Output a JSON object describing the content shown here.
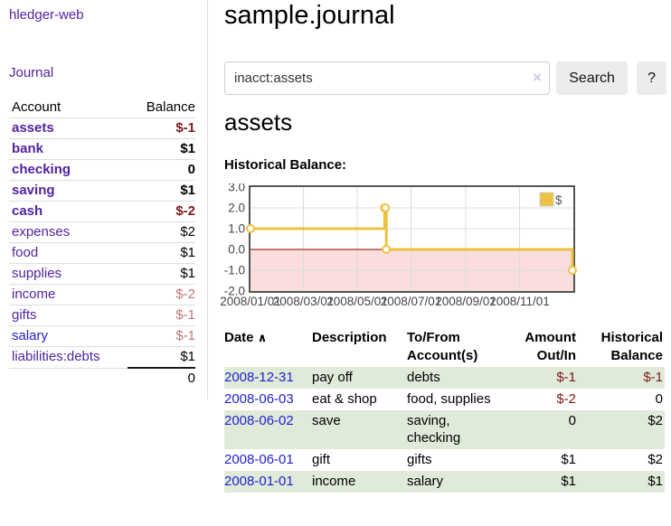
{
  "brand": "hledger-web",
  "nav": {
    "journal": "Journal"
  },
  "colors": {
    "link_purple": "#51239f",
    "link_blue": "#2222cc",
    "negative_strong": "#7f1818",
    "negative_soft": "#bd7575",
    "row_stripe_green": "#dfead9",
    "divider_gray": "#dddddd"
  },
  "icons": {
    "clear": "×",
    "sort_asc": "∧",
    "help": "?"
  },
  "sidebar_table": {
    "headers": [
      "Account",
      "Balance"
    ],
    "rows": [
      {
        "account": "assets",
        "indent": 1,
        "bold": true,
        "balance": "$-1",
        "balance_class": "neg-strong"
      },
      {
        "account": "bank",
        "indent": 2,
        "bold": true,
        "balance": "$1",
        "balance_class": "pos"
      },
      {
        "account": "checking",
        "indent": 3,
        "bold": true,
        "balance": "0",
        "balance_class": "pos"
      },
      {
        "account": "saving",
        "indent": 3,
        "bold": true,
        "balance": "$1",
        "balance_class": "pos"
      },
      {
        "account": "cash",
        "indent": 2,
        "bold": true,
        "balance": "$-2",
        "balance_class": "neg-strong"
      },
      {
        "account": "expenses",
        "indent": 1,
        "bold": false,
        "balance": "$2",
        "balance_class": "pos"
      },
      {
        "account": "food",
        "indent": 2,
        "bold": false,
        "balance": "$1",
        "balance_class": "pos"
      },
      {
        "account": "supplies",
        "indent": 2,
        "bold": false,
        "balance": "$1",
        "balance_class": "pos"
      },
      {
        "account": "income",
        "indent": 1,
        "bold": false,
        "balance": "$-2",
        "balance_class": "neg-soft"
      },
      {
        "account": "gifts",
        "indent": 2,
        "bold": false,
        "balance": "$-1",
        "balance_class": "neg-soft"
      },
      {
        "account": "salary",
        "indent": 2,
        "bold": false,
        "blue": true,
        "balance": "$-1",
        "balance_class": "neg-soft"
      },
      {
        "account": "liabilities:debts",
        "indent": 1,
        "bold": false,
        "balance": "$1",
        "balance_class": "pos"
      }
    ],
    "total": "0"
  },
  "header": {
    "title": "sample.journal"
  },
  "search": {
    "value": "inacct:assets",
    "button": "Search",
    "help_label": "?"
  },
  "account_page": {
    "title": "assets",
    "chart_label": "Historical Balance:"
  },
  "chart_data": {
    "type": "line",
    "step": true,
    "title": "Historical Balance",
    "x_start": "2008-01-01",
    "x_end": "2009-01-01",
    "ylim": [
      -2,
      3
    ],
    "yticks": [
      3.0,
      2.0,
      1.0,
      0.0,
      -1.0,
      -2.0
    ],
    "xticks": [
      "2008/01/01",
      "2008/03/01",
      "2008/05/01",
      "2008/07/01",
      "2008/09/01",
      "2008/11/01"
    ],
    "grid": true,
    "legend_position": "top-right",
    "negative_fill": "#fadddd",
    "zero_line_color": "#8b0000",
    "grid_line_color": "#dcdcdc",
    "border_color": "#545454",
    "series": [
      {
        "name": "$",
        "color": "#edc240",
        "points": [
          [
            "2008-01-01",
            1
          ],
          [
            "2008-06-01",
            2
          ],
          [
            "2008-06-02",
            2
          ],
          [
            "2008-06-03",
            0
          ],
          [
            "2008-12-31",
            -1
          ]
        ]
      }
    ]
  },
  "register": {
    "headers": [
      {
        "label": "Date",
        "align": "left",
        "sorted": true
      },
      {
        "label": "Description",
        "align": "left"
      },
      {
        "label": "To/From Account(s)",
        "align": "left"
      },
      {
        "label": "Amount Out/In",
        "align": "right"
      },
      {
        "label": "Historical Balance",
        "align": "right"
      }
    ],
    "rows": [
      {
        "date": "2008-12-31",
        "description": "pay off",
        "accounts": "debts",
        "amount": "$-1",
        "amount_neg": true,
        "balance": "$-1",
        "balance_neg": true,
        "striped": true
      },
      {
        "date": "2008-06-03",
        "description": "eat & shop",
        "accounts": "food, supplies",
        "amount": "$-2",
        "amount_neg": true,
        "balance": "0",
        "balance_neg": false,
        "striped": false
      },
      {
        "date": "2008-06-02",
        "description": "save",
        "accounts": "saving, checking",
        "amount": "0",
        "amount_neg": false,
        "balance": "$2",
        "balance_neg": false,
        "striped": true
      },
      {
        "date": "2008-06-01",
        "description": "gift",
        "accounts": "gifts",
        "amount": "$1",
        "amount_neg": false,
        "balance": "$2",
        "balance_neg": false,
        "striped": false
      },
      {
        "date": "2008-01-01",
        "description": "income",
        "accounts": "salary",
        "amount": "$1",
        "amount_neg": false,
        "balance": "$1",
        "balance_neg": false,
        "striped": true
      }
    ]
  }
}
